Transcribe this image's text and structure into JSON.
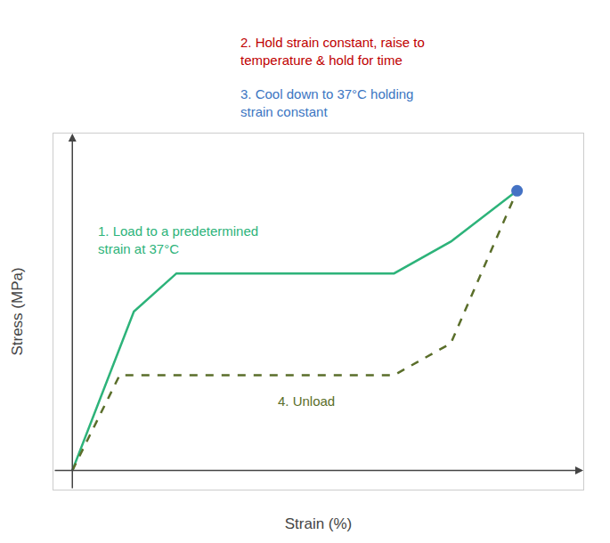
{
  "chart_data": {
    "type": "line",
    "xlabel": "Strain (%)",
    "ylabel": "Stress (MPa)",
    "xlim": [
      -0.04,
      1.08
    ],
    "ylim": [
      -0.06,
      1.06
    ],
    "grid": false,
    "tick_labels": false,
    "series": [
      {
        "type": "line",
        "color": "#2db37a",
        "line_style": "solid",
        "x": [
          0.0,
          0.13,
          0.22,
          0.68,
          0.8,
          0.94
        ],
        "values": [
          0.0,
          0.5,
          0.62,
          0.62,
          0.72,
          0.88
        ]
      },
      {
        "type": "line",
        "color": "#5a6e2a",
        "line_style": "dashed",
        "x": [
          0.0,
          0.1,
          0.68,
          0.8,
          0.94
        ],
        "values": [
          0.0,
          0.3,
          0.3,
          0.4,
          0.88
        ]
      },
      {
        "type": "scatter",
        "color": "#4472c4",
        "marker": "circle",
        "x": [
          0.94
        ],
        "values": [
          0.88
        ]
      }
    ],
    "annotations": [
      {
        "text": "1. Load to a predetermined\nstrain at 37°C",
        "color": "#2db37a"
      },
      {
        "text": "2. Hold strain constant, raise to\ntemperature & hold for time",
        "color": "#c00000"
      },
      {
        "text": "3. Cool down to 37°C holding\nstrain constant",
        "color": "#3b75c2"
      },
      {
        "text": "4. Unload",
        "color": "#5a6e2a"
      }
    ]
  }
}
